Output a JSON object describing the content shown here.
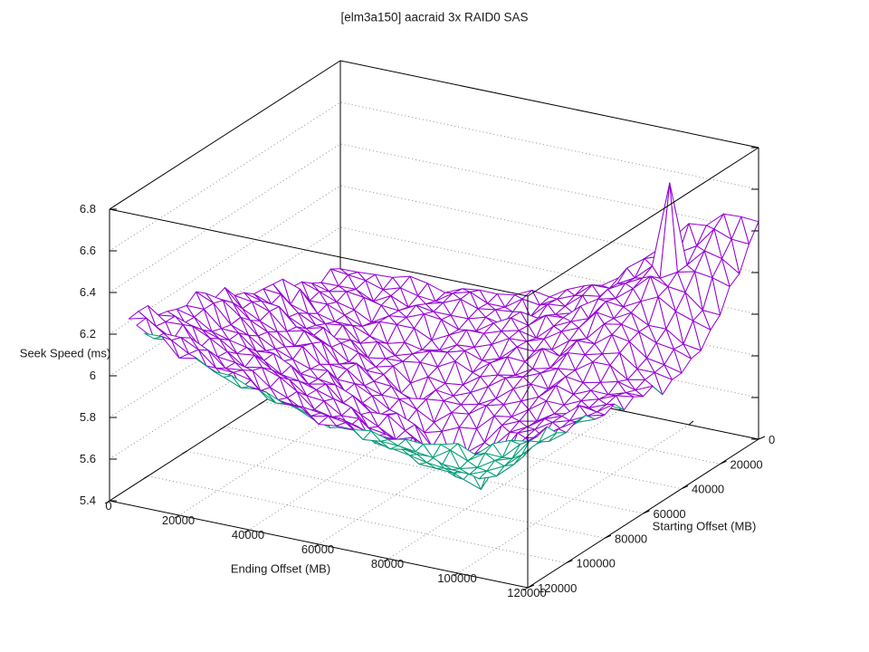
{
  "title": "[elm3a150] aacraid 3x RAID0 SAS",
  "colors": {
    "background": "#ffffff",
    "border": "#000000",
    "grid": "#909090",
    "text": "#1a1a1a",
    "surface_top": "#9400d3",
    "surface_bottom": "#009e73"
  },
  "chart_data": {
    "type": "surface",
    "style": "wireframe-hidden3d",
    "title": "[elm3a150] aacraid 3x RAID0 SAS",
    "xlabel": "Ending Offset (MB)",
    "ylabel": "Starting Offset (MB)",
    "zlabel": "Seek Speed (ms)",
    "x_range": [
      0,
      120000
    ],
    "y_range": [
      0,
      120000
    ],
    "z_range": [
      5.4,
      6.8
    ],
    "x_ticks": [
      0,
      20000,
      40000,
      60000,
      80000,
      100000,
      120000
    ],
    "x_tick_labels": [
      "0",
      "20000",
      "40000",
      "60000",
      "80000",
      "100000",
      "120000"
    ],
    "y_ticks": [
      0,
      20000,
      40000,
      60000,
      80000,
      100000,
      120000
    ],
    "y_tick_labels": [
      "0",
      "20000",
      "40000",
      "60000",
      "80000",
      "100000",
      "120000"
    ],
    "z_ticks": [
      5.4,
      5.6,
      5.8,
      6.0,
      6.2,
      6.4,
      6.6,
      6.8
    ],
    "z_tick_labels": [
      "5.4",
      "5.6",
      "5.8",
      "6",
      "6.2",
      "6.4",
      "6.6",
      "6.8"
    ],
    "grid": true,
    "legend": null,
    "surface_color": "#9400d3",
    "underside_color": "#009e73",
    "z_grid_step": 10000,
    "z_grid": [
      [
        5.8,
        5.8,
        5.81,
        5.82,
        5.83,
        5.85,
        5.88,
        5.95,
        6.06,
        6.2,
        6.36,
        6.44,
        6.45
      ],
      [
        5.81,
        5.78,
        5.79,
        5.8,
        5.82,
        5.84,
        5.87,
        5.93,
        6.02,
        6.14,
        6.22,
        6.32,
        6.28
      ],
      [
        5.85,
        5.79,
        5.76,
        5.78,
        5.8,
        5.82,
        5.86,
        5.91,
        6.0,
        6.12,
        6.22,
        6.18,
        6.1
      ],
      [
        5.9,
        5.83,
        5.77,
        5.73,
        5.76,
        5.79,
        5.83,
        5.88,
        5.95,
        6.05,
        6.12,
        6.06,
        6.0
      ],
      [
        5.95,
        5.88,
        5.8,
        5.75,
        5.7,
        5.74,
        5.78,
        5.84,
        5.9,
        5.98,
        6.04,
        6.0,
        5.96
      ],
      [
        6.0,
        5.92,
        5.85,
        5.78,
        5.72,
        5.66,
        5.72,
        5.78,
        5.85,
        5.92,
        5.98,
        5.96,
        5.94
      ],
      [
        6.05,
        5.97,
        5.89,
        5.82,
        5.75,
        5.69,
        5.62,
        5.7,
        5.78,
        5.87,
        5.93,
        5.94,
        5.96
      ],
      [
        6.09,
        6.01,
        5.93,
        5.86,
        5.79,
        5.72,
        5.66,
        5.58,
        5.68,
        5.8,
        5.9,
        5.94,
        5.99
      ],
      [
        6.13,
        6.05,
        5.97,
        5.9,
        5.83,
        5.76,
        5.7,
        5.63,
        5.57,
        5.72,
        5.86,
        5.94,
        6.02
      ],
      [
        6.16,
        6.09,
        6.01,
        5.94,
        5.88,
        5.81,
        5.75,
        5.7,
        5.65,
        5.62,
        5.8,
        5.94,
        6.05
      ],
      [
        6.19,
        6.13,
        6.06,
        5.99,
        5.93,
        5.87,
        5.82,
        5.78,
        5.75,
        5.73,
        5.76,
        5.92,
        6.06
      ],
      [
        6.24,
        6.18,
        6.12,
        6.06,
        6.0,
        5.95,
        5.91,
        5.88,
        5.86,
        5.85,
        5.86,
        5.94,
        6.08
      ],
      [
        6.3,
        6.24,
        6.18,
        6.13,
        6.08,
        6.04,
        6.01,
        5.99,
        5.98,
        5.98,
        6.0,
        6.04,
        6.1
      ]
    ],
    "spike": {
      "x": 100000,
      "y": 10000,
      "z": 6.62
    },
    "masked_corner": {
      "y_minus_x_greater_than": 110000
    },
    "noise_amplitude": 0.035,
    "noise_seed": 11,
    "resolution": 25
  }
}
